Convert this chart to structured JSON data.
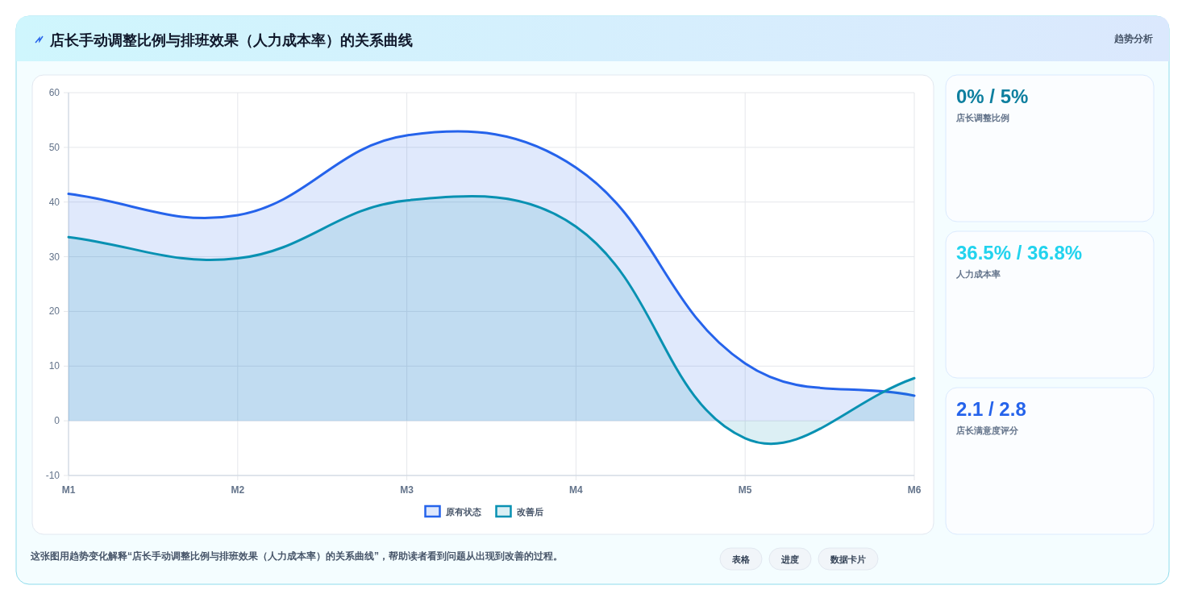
{
  "chart_data": [
    {
      "type": "other",
      "title": "店长手动调整比例与排班效果（人力成本率）的关系曲线",
      "subtitle": "趋势分析"
    },
    {
      "type": "area",
      "categories": [
        "M1",
        "M2",
        "M3",
        "M4",
        "M5",
        "M6"
      ],
      "series": [
        {
          "name": "原有状态",
          "color": "#2563eb",
          "values": [
            41.5,
            37.6,
            52.2,
            46.3,
            10.5,
            4.6
          ]
        },
        {
          "name": "改善后",
          "color": "#0891b2",
          "values": [
            33.6,
            29.7,
            40.3,
            35.5,
            -3.2,
            7.8
          ]
        }
      ],
      "ylim": [
        -10,
        60
      ],
      "yticks": [
        -10,
        0,
        10,
        20,
        30,
        40,
        50,
        60
      ],
      "grid": true,
      "legend": "bottom",
      "marker": "none",
      "line_style": "solid",
      "annotations": [
        "这张图用趋势变化解释“店长手动调整比例与排班效果（人力成本率）的关系曲线”，帮助读者看到问题从出现到改善的过程。",
        "表格",
        "进度",
        "数据卡片"
      ]
    },
    {
      "type": "other",
      "title": "0% / 5%",
      "subtitle": "店长调整比例",
      "color": "#0e7f9f"
    },
    {
      "type": "other",
      "title": "36.5% / 36.8%",
      "subtitle": "人力成本率",
      "color": "#22d3ee"
    },
    {
      "type": "other",
      "title": "2.1 / 2.8",
      "subtitle": "店长满意度评分",
      "color": "#2563eb"
    }
  ]
}
